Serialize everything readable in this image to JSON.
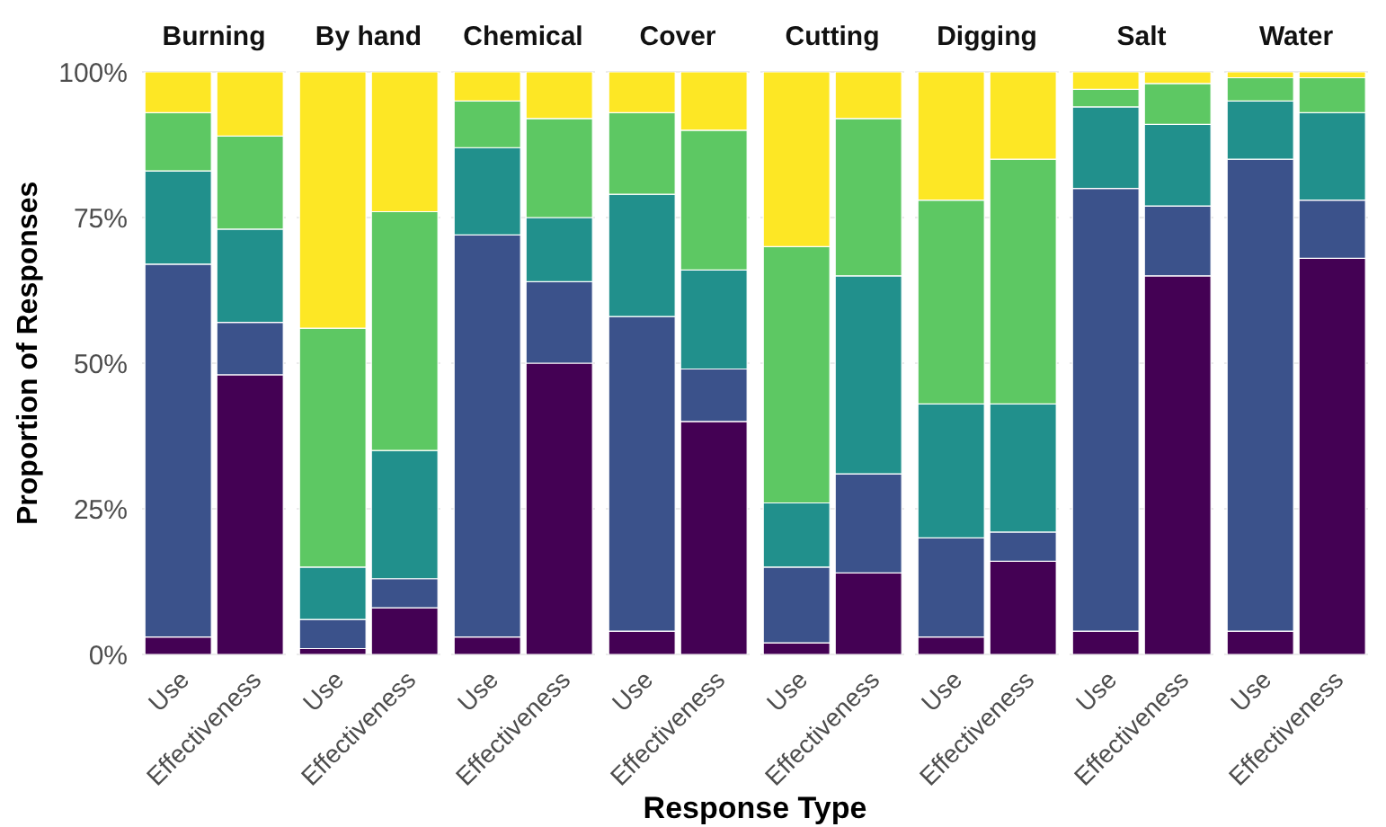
{
  "chart_data": [
    {
      "type": "bar",
      "title": "Burning",
      "ylabel": "Proportion of Responses",
      "categories": [
        "Use",
        "Effectiveness"
      ],
      "stacked": true,
      "grid": "y",
      "ylim": [
        0,
        100
      ],
      "yticks": [
        {
          "value": 0,
          "label": "0%"
        },
        {
          "value": 25,
          "label": "25%"
        },
        {
          "value": 50,
          "label": "50%"
        },
        {
          "value": 75,
          "label": "75%"
        },
        {
          "value": 100,
          "label": "100%"
        }
      ],
      "series": [
        {
          "color": "#440154",
          "values": [
            3,
            48
          ]
        },
        {
          "color": "#3b528b",
          "values": [
            64,
            9
          ]
        },
        {
          "color": "#21908c",
          "values": [
            16,
            16
          ]
        },
        {
          "color": "#5dc863",
          "values": [
            10,
            16
          ]
        },
        {
          "color": "#fde725",
          "values": [
            7,
            11
          ]
        }
      ]
    },
    {
      "type": "bar",
      "title": "By hand",
      "categories": [
        "Use",
        "Effectiveness"
      ],
      "stacked": true,
      "grid": "y",
      "tick_labels": "x",
      "ylim": [
        0,
        100
      ],
      "yticks": [
        0,
        25,
        50,
        75,
        100
      ],
      "series": [
        {
          "color": "#440154",
          "values": [
            1,
            8
          ]
        },
        {
          "color": "#3b528b",
          "values": [
            5,
            5
          ]
        },
        {
          "color": "#21908c",
          "values": [
            9,
            22
          ]
        },
        {
          "color": "#5dc863",
          "values": [
            41,
            41
          ]
        },
        {
          "color": "#fde725",
          "values": [
            44,
            24
          ]
        }
      ]
    },
    {
      "type": "bar",
      "title": "Chemical",
      "categories": [
        "Use",
        "Effectiveness"
      ],
      "stacked": true,
      "grid": "y",
      "tick_labels": "x",
      "ylim": [
        0,
        100
      ],
      "yticks": [
        0,
        25,
        50,
        75,
        100
      ],
      "series": [
        {
          "color": "#440154",
          "values": [
            3,
            50
          ]
        },
        {
          "color": "#3b528b",
          "values": [
            69,
            14
          ]
        },
        {
          "color": "#21908c",
          "values": [
            15,
            11
          ]
        },
        {
          "color": "#5dc863",
          "values": [
            8,
            17
          ]
        },
        {
          "color": "#fde725",
          "values": [
            5,
            8
          ]
        }
      ]
    },
    {
      "type": "bar",
      "title": "Cover",
      "xlabel": "Response Type",
      "categories": [
        "Use",
        "Effectiveness"
      ],
      "stacked": true,
      "grid": "y",
      "tick_labels": "x",
      "ylim": [
        0,
        100
      ],
      "yticks": [
        0,
        25,
        50,
        75,
        100
      ],
      "series": [
        {
          "color": "#440154",
          "values": [
            4,
            40
          ]
        },
        {
          "color": "#3b528b",
          "values": [
            54,
            9
          ]
        },
        {
          "color": "#21908c",
          "values": [
            21,
            17
          ]
        },
        {
          "color": "#5dc863",
          "values": [
            14,
            24
          ]
        },
        {
          "color": "#fde725",
          "values": [
            7,
            10
          ]
        }
      ]
    },
    {
      "type": "bar",
      "title": "Cutting",
      "categories": [
        "Use",
        "Effectiveness"
      ],
      "stacked": true,
      "grid": "y",
      "tick_labels": "x",
      "ylim": [
        0,
        100
      ],
      "yticks": [
        0,
        25,
        50,
        75,
        100
      ],
      "series": [
        {
          "color": "#440154",
          "values": [
            2,
            14
          ]
        },
        {
          "color": "#3b528b",
          "values": [
            13,
            17
          ]
        },
        {
          "color": "#21908c",
          "values": [
            11,
            34
          ]
        },
        {
          "color": "#5dc863",
          "values": [
            44,
            27
          ]
        },
        {
          "color": "#fde725",
          "values": [
            30,
            8
          ]
        }
      ]
    },
    {
      "type": "bar",
      "title": "Digging",
      "categories": [
        "Use",
        "Effectiveness"
      ],
      "stacked": true,
      "grid": "y",
      "tick_labels": "x",
      "ylim": [
        0,
        100
      ],
      "yticks": [
        0,
        25,
        50,
        75,
        100
      ],
      "series": [
        {
          "color": "#440154",
          "values": [
            3,
            16
          ]
        },
        {
          "color": "#3b528b",
          "values": [
            17,
            5
          ]
        },
        {
          "color": "#21908c",
          "values": [
            23,
            22
          ]
        },
        {
          "color": "#5dc863",
          "values": [
            35,
            42
          ]
        },
        {
          "color": "#fde725",
          "values": [
            22,
            15
          ]
        }
      ]
    },
    {
      "type": "bar",
      "title": "Salt",
      "categories": [
        "Use",
        "Effectiveness"
      ],
      "stacked": true,
      "grid": "y",
      "tick_labels": "x",
      "ylim": [
        0,
        100
      ],
      "yticks": [
        0,
        25,
        50,
        75,
        100
      ],
      "series": [
        {
          "color": "#440154",
          "values": [
            4,
            65
          ]
        },
        {
          "color": "#3b528b",
          "values": [
            76,
            12
          ]
        },
        {
          "color": "#21908c",
          "values": [
            14,
            14
          ]
        },
        {
          "color": "#5dc863",
          "values": [
            3,
            7
          ]
        },
        {
          "color": "#fde725",
          "values": [
            3,
            2
          ]
        }
      ]
    },
    {
      "type": "bar",
      "title": "Water",
      "categories": [
        "Use",
        "Effectiveness"
      ],
      "stacked": true,
      "grid": "y",
      "tick_labels": "x",
      "ylim": [
        0,
        100
      ],
      "yticks": [
        0,
        25,
        50,
        75,
        100
      ],
      "series": [
        {
          "color": "#440154",
          "values": [
            4,
            68
          ]
        },
        {
          "color": "#3b528b",
          "values": [
            81,
            10
          ]
        },
        {
          "color": "#21908c",
          "values": [
            10,
            15
          ]
        },
        {
          "color": "#5dc863",
          "values": [
            4,
            6
          ]
        },
        {
          "color": "#fde725",
          "values": [
            1,
            1
          ]
        }
      ]
    }
  ]
}
